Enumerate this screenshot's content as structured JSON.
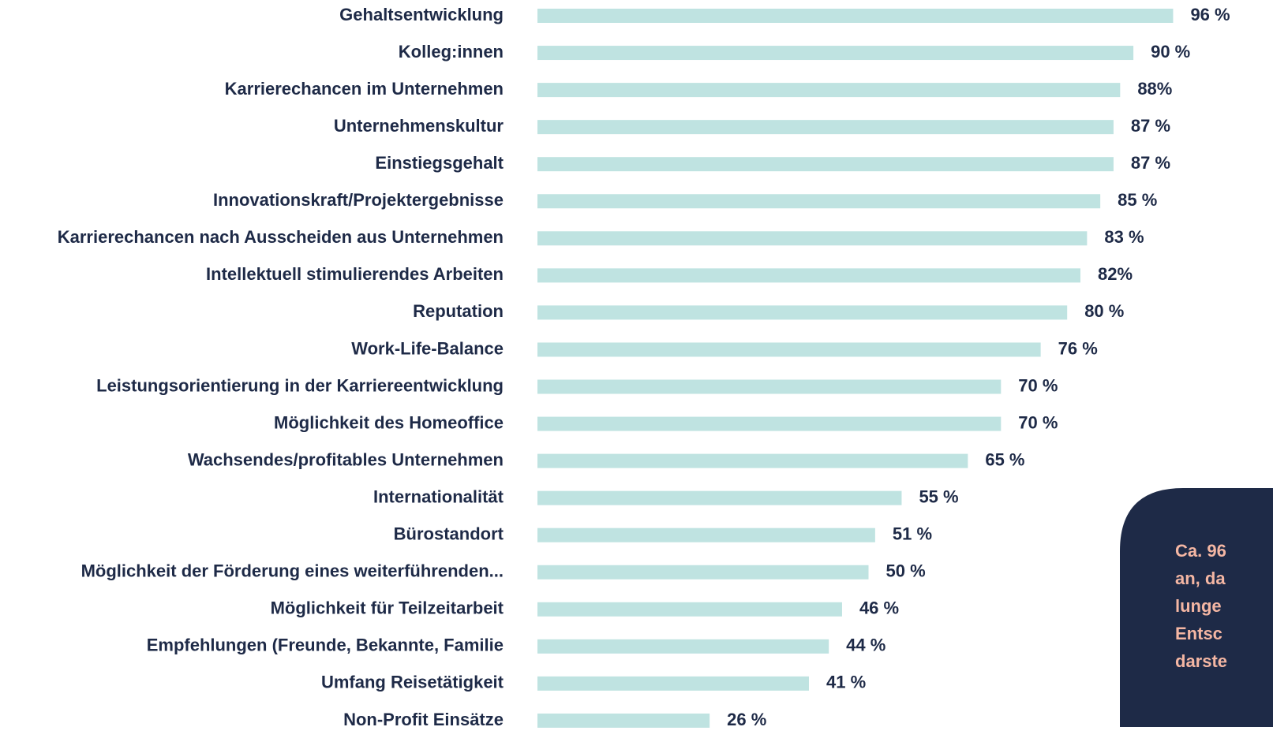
{
  "chart_data": {
    "type": "bar",
    "orientation": "horizontal",
    "categories": [
      "Gehaltsentwicklung",
      "Kolleg:innen",
      "Karrierechancen im Unternehmen",
      "Unternehmenskultur",
      "Einstiegsgehalt",
      "Innovationskraft/Projektergebnisse",
      "Karrierechancen nach Ausscheiden aus Unternehmen",
      "Intellektuell stimulierendes Arbeiten",
      "Reputation",
      "Work-Life-Balance",
      "Leistungsorientierung in der Karriereentwicklung",
      "Möglichkeit des Homeoffice",
      "Wachsendes/profitables Unternehmen",
      "Internationalität",
      "Bürostandort",
      "Möglichkeit der Förderung eines weiterführenden...",
      "Möglichkeit für Teilzeitarbeit",
      "Empfehlungen (Freunde, Bekannte, Familie",
      "Umfang Reisetätigkeit",
      "Non-Profit Einsätze"
    ],
    "values": [
      96,
      90,
      88,
      87,
      87,
      85,
      83,
      82,
      80,
      76,
      70,
      70,
      65,
      55,
      51,
      50,
      46,
      44,
      41,
      26
    ],
    "value_labels": [
      "96 %",
      "90 %",
      "88%",
      "87 %",
      "87 %",
      "85 %",
      "83 %",
      "82%",
      "80 %",
      "76 %",
      "70 %",
      "70 %",
      "65 %",
      "55 %",
      "51 %",
      "50 %",
      "46 %",
      "44 %",
      "41 %",
      "26 %"
    ],
    "color": "#bfe3e1",
    "xlim": [
      0,
      100
    ],
    "callout": {
      "lines": [
        "Ca. 96",
        "an, da",
        "lunge",
        "Entsc",
        "darste"
      ],
      "background": "#1e2a47",
      "color": "#f4b6a3"
    }
  }
}
